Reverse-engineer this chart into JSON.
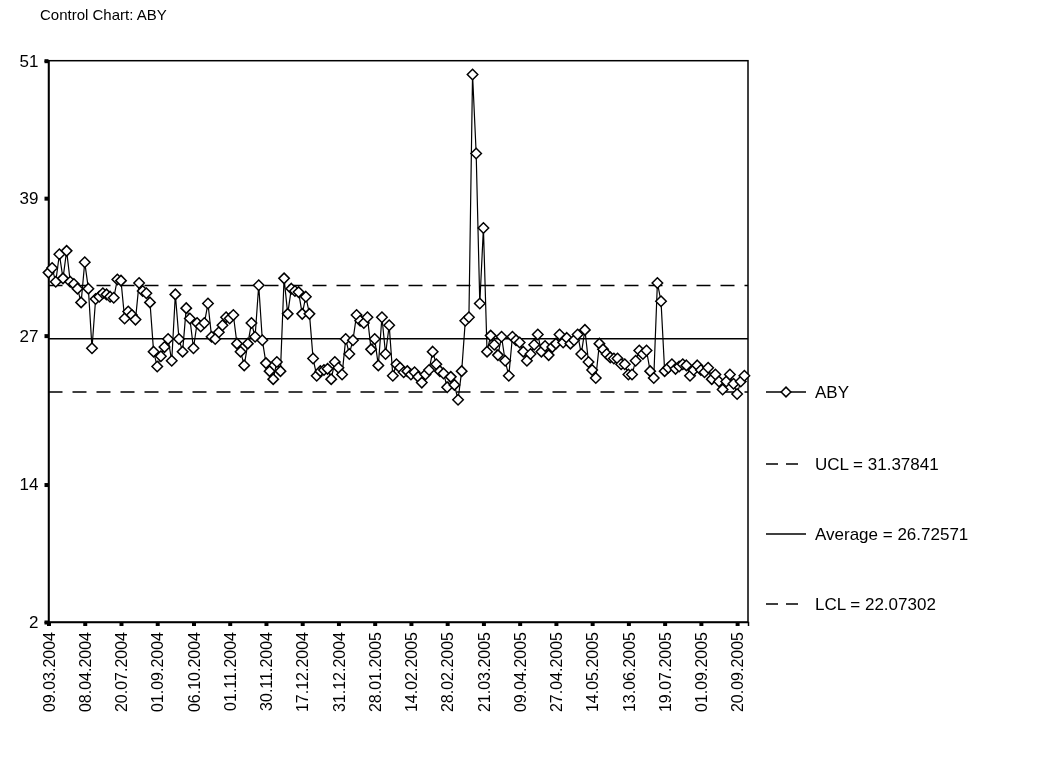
{
  "chart_data": {
    "type": "line",
    "title": "Control Chart: ABY",
    "categories": [
      "09.03.2004",
      null,
      null,
      null,
      null,
      null,
      null,
      null,
      null,
      null,
      "08.04.2004",
      null,
      null,
      null,
      null,
      null,
      null,
      null,
      null,
      null,
      "20.07.2004",
      null,
      null,
      null,
      null,
      null,
      null,
      null,
      null,
      null,
      "01.09.2004",
      null,
      null,
      null,
      null,
      null,
      null,
      null,
      null,
      null,
      "06.10.2004",
      null,
      null,
      null,
      null,
      null,
      null,
      null,
      null,
      null,
      "01.11.2004",
      null,
      null,
      null,
      null,
      null,
      null,
      null,
      null,
      null,
      "30.11.2004",
      null,
      null,
      null,
      null,
      null,
      null,
      null,
      null,
      null,
      "17.12.2004",
      null,
      null,
      null,
      null,
      null,
      null,
      null,
      null,
      null,
      "31.12.2004",
      null,
      null,
      null,
      null,
      null,
      null,
      null,
      null,
      null,
      "28.01.2005",
      null,
      null,
      null,
      null,
      null,
      null,
      null,
      null,
      null,
      "14.02.2005",
      null,
      null,
      null,
      null,
      null,
      null,
      null,
      null,
      null,
      "28.02.2005",
      null,
      null,
      null,
      null,
      null,
      null,
      null,
      null,
      null,
      "21.03.2005",
      null,
      null,
      null,
      null,
      null,
      null,
      null,
      null,
      null,
      "09.04.2005",
      null,
      null,
      null,
      null,
      null,
      null,
      null,
      null,
      null,
      "27.04.2005",
      null,
      null,
      null,
      null,
      null,
      null,
      null,
      null,
      null,
      "14.05.2005",
      null,
      null,
      null,
      null,
      null,
      null,
      null,
      null,
      null,
      "13.06.2005",
      null,
      null,
      null,
      null,
      null,
      null,
      null,
      null,
      null,
      "19.07.2005",
      null,
      null,
      null,
      null,
      null,
      null,
      null,
      null,
      null,
      "01.09.2005",
      null,
      null,
      null,
      null,
      null,
      null,
      null,
      null,
      null,
      "20.09.2005",
      null,
      null
    ],
    "series": [
      {
        "name": "ABY",
        "color": "#000000",
        "values": [
          32.5,
          32.9,
          31.7,
          34.1,
          32.0,
          34.4,
          31.7,
          31.5,
          31.1,
          29.9,
          33.4,
          31.1,
          25.9,
          30.2,
          30.4,
          30.7,
          30.6,
          30.4,
          30.3,
          31.9,
          31.8,
          28.5,
          29.1,
          28.8,
          28.4,
          31.6,
          30.9,
          30.7,
          29.9,
          25.6,
          24.3,
          25.2,
          26.0,
          26.7,
          24.8,
          30.6,
          26.7,
          25.6,
          29.4,
          28.5,
          25.9,
          28.1,
          27.8,
          28.1,
          29.8,
          26.9,
          26.7,
          27.3,
          27.9,
          28.6,
          28.5,
          28.8,
          26.3,
          25.6,
          24.4,
          26.3,
          28.1,
          26.9,
          31.4,
          26.6,
          24.6,
          23.9,
          23.2,
          24.7,
          23.9,
          32.0,
          28.9,
          31.1,
          30.9,
          30.8,
          28.9,
          30.4,
          28.9,
          25.0,
          23.5,
          23.9,
          24.0,
          24.1,
          23.2,
          24.7,
          24.2,
          23.6,
          26.7,
          25.4,
          26.6,
          28.8,
          28.3,
          28.1,
          28.6,
          25.8,
          26.7,
          24.4,
          28.6,
          25.4,
          27.9,
          23.5,
          24.5,
          24.2,
          23.8,
          23.9,
          23.6,
          23.8,
          23.4,
          22.9,
          23.6,
          24.0,
          25.6,
          24.5,
          23.9,
          23.7,
          22.5,
          23.4,
          22.7,
          21.4,
          23.9,
          28.3,
          28.6,
          49.8,
          42.9,
          29.8,
          36.4,
          25.6,
          27.0,
          26.2,
          25.3,
          26.9,
          24.8,
          23.5,
          26.9,
          26.6,
          26.4,
          25.6,
          24.8,
          25.4,
          26.2,
          27.1,
          25.6,
          26.1,
          25.3,
          26.0,
          26.3,
          27.1,
          26.4,
          26.8,
          26.3,
          26.6,
          27.1,
          25.4,
          27.5,
          24.7,
          24.0,
          23.3,
          26.3,
          25.8,
          25.4,
          25.1,
          25.0,
          25.0,
          24.5,
          24.5,
          23.6,
          23.6,
          24.8,
          25.7,
          25.4,
          25.7,
          23.9,
          23.3,
          31.6,
          30.0,
          23.9,
          24.2,
          24.5,
          24.1,
          24.3,
          24.5,
          24.4,
          23.5,
          24.0,
          24.4,
          24.0,
          23.8,
          24.2,
          23.2,
          23.6,
          23.0,
          22.3,
          23.0,
          23.6,
          22.8,
          21.9,
          23.0,
          23.5
        ]
      }
    ],
    "ylim": [
      2,
      51
    ],
    "yticks": [
      2,
      14,
      27,
      39,
      51
    ],
    "ref_lines": [
      {
        "axis": "y",
        "value": 31.37841,
        "label": "UCL = 31.37841",
        "line_style": "dashed"
      },
      {
        "axis": "y",
        "value": 26.72571,
        "label": "Average = 26.72571",
        "line_style": "solid"
      },
      {
        "axis": "y",
        "value": 22.07302,
        "label": "LCL = 22.07302",
        "line_style": "dashed"
      }
    ],
    "marker": "diamond",
    "line_style": "solid",
    "grid": false,
    "legend": "right"
  }
}
